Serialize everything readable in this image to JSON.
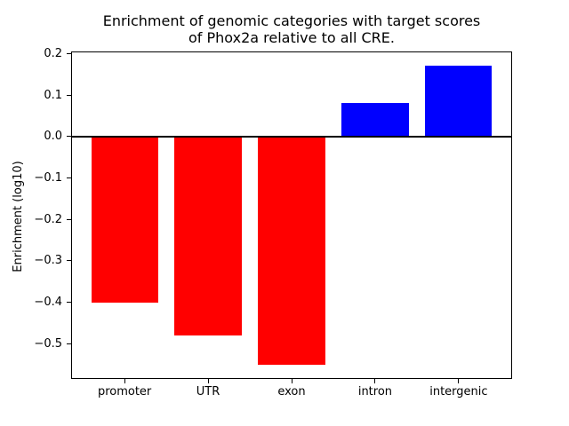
{
  "figure": {
    "background": "#ffffff"
  },
  "chart_data": {
    "type": "bar",
    "title": "Enrichment of genomic categories with target scores\nof Phox2a relative to all CRE.",
    "title_lines": [
      "Enrichment of genomic categories with target scores",
      "of Phox2a relative to all CRE."
    ],
    "xlabel": "",
    "ylabel": "Enrichment (log10)",
    "categories": [
      "promoter",
      "UTR",
      "exon",
      "intron",
      "intergenic"
    ],
    "values": [
      -0.4,
      -0.48,
      -0.55,
      0.08,
      0.17
    ],
    "bar_colors": [
      "#ff0000",
      "#ff0000",
      "#ff0000",
      "#0000ff",
      "#0000ff"
    ],
    "negative_color": "#ff0000",
    "positive_color": "#0000ff",
    "yticks": [
      {
        "value": 0.2,
        "label": "0.2"
      },
      {
        "value": 0.1,
        "label": "0.1"
      },
      {
        "value": 0.0,
        "label": "0.0"
      },
      {
        "value": -0.1,
        "label": "−0.1"
      },
      {
        "value": -0.2,
        "label": "−0.2"
      },
      {
        "value": -0.3,
        "label": "−0.3"
      },
      {
        "value": -0.4,
        "label": "−0.4"
      },
      {
        "value": -0.5,
        "label": "−0.5"
      }
    ],
    "ylim": [
      -0.585,
      0.205
    ],
    "xlim": [
      -0.64,
      4.64
    ],
    "bar_width": 0.8,
    "grid": false,
    "legend": "none",
    "zero_line": {
      "value": 0,
      "color": "#000000",
      "thickness_px": 2
    },
    "axis_color": "#000000",
    "text_color": "#000000"
  }
}
